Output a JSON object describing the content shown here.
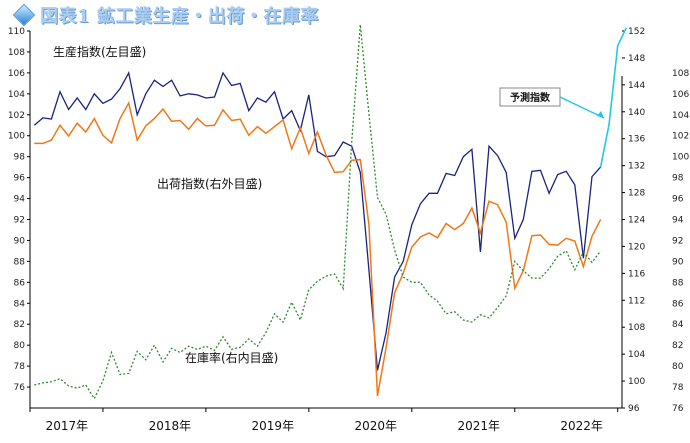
{
  "title": "図表1 鉱工業生産・出荷・在庫率",
  "colors": {
    "production": "#1a237e",
    "shipment": "#f07818",
    "inventory": "#2e8b2e",
    "forecast": "#22c8e6"
  },
  "chart_data": {
    "type": "line",
    "x_tick_labels": [
      "2017年",
      "2018年",
      "2019年",
      "2020年",
      "2021年",
      "2022年"
    ],
    "left_axis": {
      "ylim": [
        74,
        110
      ],
      "ticks": [
        76,
        78,
        80,
        82,
        84,
        86,
        88,
        90,
        92,
        94,
        96,
        98,
        100,
        102,
        104,
        106,
        108,
        110
      ]
    },
    "right_axis_1": {
      "ylim": [
        96,
        152
      ],
      "ticks": [
        96,
        100,
        104,
        108,
        112,
        116,
        120,
        124,
        128,
        132,
        136,
        140,
        144,
        148,
        152
      ]
    },
    "right_axis_2": {
      "ylim": [
        76,
        112
      ],
      "ticks": [
        76,
        78,
        80,
        82,
        84,
        86,
        88,
        90,
        92,
        94,
        96,
        98,
        100,
        102,
        104,
        106,
        108
      ]
    },
    "series": [
      {
        "name": "生産指数(左目盛)",
        "axis": "left",
        "values": [
          101.0,
          101.7,
          101.6,
          104.2,
          102.5,
          103.6,
          102.5,
          104.0,
          103.1,
          103.5,
          104.5,
          106.0,
          102.0,
          104.0,
          105.3,
          104.7,
          105.3,
          103.8,
          104.0,
          103.9,
          103.6,
          103.7,
          106.0,
          104.8,
          105.0,
          102.4,
          103.6,
          103.2,
          104.2,
          101.6,
          102.4,
          100.5,
          103.9,
          98.5,
          98.0,
          98.1,
          99.4,
          99.0,
          96.5,
          87.2,
          77.6,
          81.2,
          86.5,
          88.0,
          91.5,
          93.5,
          94.5,
          94.5,
          96.4,
          96.2,
          98.0,
          98.7,
          88.9,
          99.0,
          98.1,
          96.5,
          90.2,
          92.0,
          96.6,
          96.7,
          94.5,
          96.3,
          96.6,
          95.3,
          88.3,
          96.1,
          97.0
        ]
      },
      {
        "name": "出荷指数(右外目盛)",
        "axis": "right_outer",
        "values": [
          135.3,
          135.3,
          135.8,
          138.0,
          136.4,
          138.3,
          137.0,
          139.0,
          136.5,
          135.4,
          139.0,
          141.3,
          135.8,
          137.9,
          139.0,
          140.4,
          138.6,
          138.7,
          137.4,
          139.0,
          137.9,
          138.0,
          140.3,
          138.7,
          138.9,
          136.5,
          137.8,
          136.8,
          137.8,
          138.8,
          134.5,
          137.6,
          133.8,
          137.0,
          133.6,
          131.0,
          131.1,
          132.8,
          132.9,
          123.3,
          97.8,
          105.0,
          113.1,
          116.0,
          119.9,
          121.4,
          122.0,
          121.3,
          123.4,
          122.5,
          123.4,
          125.7,
          122.0,
          126.7,
          126.2,
          123.6,
          113.8,
          116.4,
          121.6,
          121.7,
          120.3,
          120.2,
          121.2,
          120.8,
          117.0,
          121.5,
          124.0
        ]
      },
      {
        "name": "在庫率(右内目盛)",
        "axis": "right_inner",
        "values": [
          78.2,
          78.4,
          78.5,
          78.8,
          78.1,
          77.9,
          78.2,
          76.9,
          78.6,
          81.3,
          79.2,
          79.3,
          81.4,
          80.6,
          82.0,
          80.4,
          81.7,
          81.3,
          81.9,
          81.6,
          81.9,
          81.5,
          82.8,
          81.6,
          81.8,
          82.6,
          81.9,
          83.2,
          85.0,
          84.2,
          86.1,
          84.4,
          87.3,
          88.1,
          88.6,
          88.8,
          87.4,
          101.4,
          112.6,
          104.1,
          96.1,
          94.5,
          91.1,
          88.5,
          88.0,
          88.0,
          86.8,
          86.2,
          85.0,
          85.2,
          84.4,
          84.2,
          84.9,
          84.6,
          85.6,
          86.7,
          90.0,
          89.1,
          88.4,
          88.4,
          89.3,
          90.5,
          91.0,
          89.2,
          90.9,
          89.9,
          91.0
        ]
      },
      {
        "name": "予測指数",
        "axis": "left",
        "start_index": 66,
        "values": [
          97.0,
          101.1,
          108.6,
          110.3
        ]
      }
    ],
    "labels": {
      "production": "生産指数(左目盛)",
      "shipment": "出荷指数(右外目盛)",
      "inventory": "在庫率(右内目盛)",
      "forecast": "予測指数"
    }
  }
}
